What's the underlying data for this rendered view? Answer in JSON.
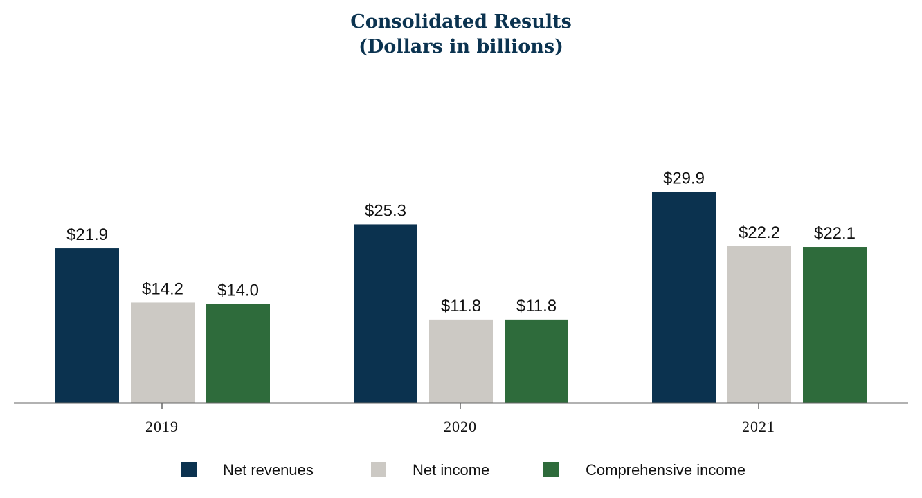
{
  "chart_data": {
    "type": "bar",
    "title": "Consolidated Results",
    "subtitle": "(Dollars in billions)",
    "categories": [
      "2019",
      "2020",
      "2021"
    ],
    "series": [
      {
        "name": "Net revenues",
        "values": [
          21.9,
          25.3,
          29.9
        ],
        "labels": [
          "$21.9",
          "$25.3",
          "$29.9"
        ],
        "color": "#0b324f"
      },
      {
        "name": "Net income",
        "values": [
          14.2,
          11.8,
          22.2
        ],
        "labels": [
          "$14.2",
          "$11.8",
          "$22.2"
        ],
        "color": "#ccc9c4"
      },
      {
        "name": "Comprehensive income",
        "values": [
          14.0,
          11.8,
          22.1
        ],
        "labels": [
          "$14.0",
          "$11.8",
          "$22.1"
        ],
        "color": "#2e6b3b"
      }
    ],
    "xlabel": "",
    "ylabel": "",
    "ylim": [
      0,
      30
    ],
    "grid": false,
    "legend_position": "bottom",
    "axis_color": "#666666"
  }
}
